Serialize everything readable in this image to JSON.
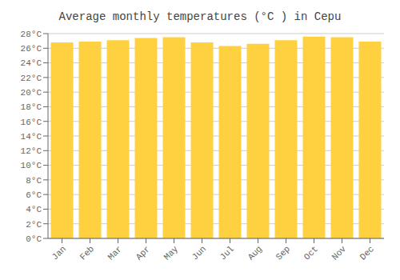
{
  "chart_data": {
    "type": "bar",
    "title": "Average monthly temperatures (°C ) in Cepu",
    "categories": [
      "Jan",
      "Feb",
      "Mar",
      "Apr",
      "May",
      "Jun",
      "Jul",
      "Aug",
      "Sep",
      "Oct",
      "Nov",
      "Dec"
    ],
    "values": [
      26.8,
      26.9,
      27.1,
      27.4,
      27.5,
      26.8,
      26.3,
      26.6,
      27.1,
      27.6,
      27.5,
      26.9
    ],
    "color": "#FFD040",
    "ylim": [
      0,
      28
    ],
    "yticks": [
      {
        "value": 0,
        "label": "0°C"
      },
      {
        "value": 2,
        "label": "2°C"
      },
      {
        "value": 4,
        "label": "4°C"
      },
      {
        "value": 6,
        "label": "6°C"
      },
      {
        "value": 8,
        "label": "8°C"
      },
      {
        "value": 10,
        "label": "10°C"
      },
      {
        "value": 12,
        "label": "12°C"
      },
      {
        "value": 14,
        "label": "14°C"
      },
      {
        "value": 16,
        "label": "16°C"
      },
      {
        "value": 18,
        "label": "18°C"
      },
      {
        "value": 20,
        "label": "20°C"
      },
      {
        "value": 22,
        "label": "22°C"
      },
      {
        "value": 24,
        "label": "24°C"
      },
      {
        "value": 26,
        "label": "26°C"
      },
      {
        "value": 28,
        "label": "28°C"
      }
    ],
    "grid": true
  }
}
